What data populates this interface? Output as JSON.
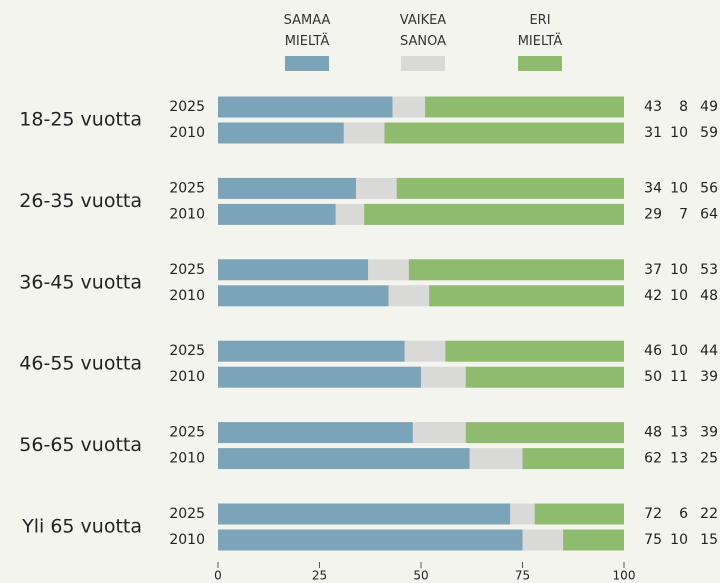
{
  "chart_data": {
    "type": "stacked-bar-horizontal",
    "groups": [
      "18-25 vuotta",
      "26-35 vuotta",
      "36-45 vuotta",
      "46-55 vuotta",
      "56-65 vuotta",
      "Yli 65 vuotta"
    ],
    "years": [
      "2025",
      "2010"
    ],
    "series": [
      {
        "name": "SAMAA MIELTÄ",
        "color": "#7ba4b9",
        "values": [
          43,
          31,
          34,
          29,
          37,
          42,
          46,
          50,
          48,
          62,
          72,
          75
        ]
      },
      {
        "name": "VAIKEA SANOA",
        "color": "#d9d9d7",
        "values": [
          8,
          10,
          10,
          7,
          10,
          10,
          10,
          11,
          13,
          13,
          6,
          10
        ]
      },
      {
        "name": "ERI MIELTÄ",
        "color": "#8fbb6f",
        "values": [
          49,
          59,
          56,
          64,
          53,
          48,
          44,
          39,
          39,
          25,
          22,
          15
        ]
      }
    ],
    "xlim": [
      0,
      100
    ],
    "xticks": [
      0,
      25,
      50,
      75,
      100
    ]
  }
}
